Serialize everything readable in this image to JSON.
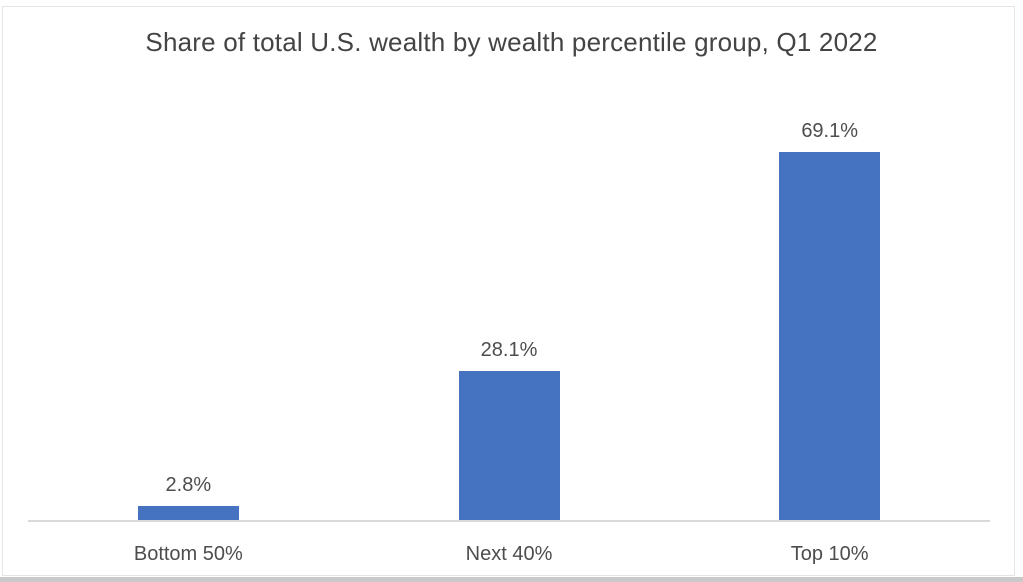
{
  "title": "Share of total U.S. wealth by wealth percentile group, Q1 2022",
  "chart_data": {
    "type": "bar",
    "title": "Share of total U.S. wealth by wealth percentile group, Q1 2022",
    "categories": [
      "Bottom 50%",
      "Next 40%",
      "Top 10%"
    ],
    "values": [
      2.8,
      28.1,
      69.1
    ],
    "data_labels": [
      "2.8%",
      "28.1%",
      "69.1%"
    ],
    "xlabel": "",
    "ylabel": "",
    "ylim": [
      0,
      82.5
    ],
    "grid": false,
    "legend": "none",
    "y_axis_visible": false,
    "colors": {
      "bar": "#4673C1",
      "title_text": "#444444",
      "label_text": "#4d4d4d",
      "axis_line": "#d9d9d9",
      "background": "#ffffff",
      "frame_border": "#e4e4e4",
      "bottom_edge": "#c9c9c9"
    }
  }
}
